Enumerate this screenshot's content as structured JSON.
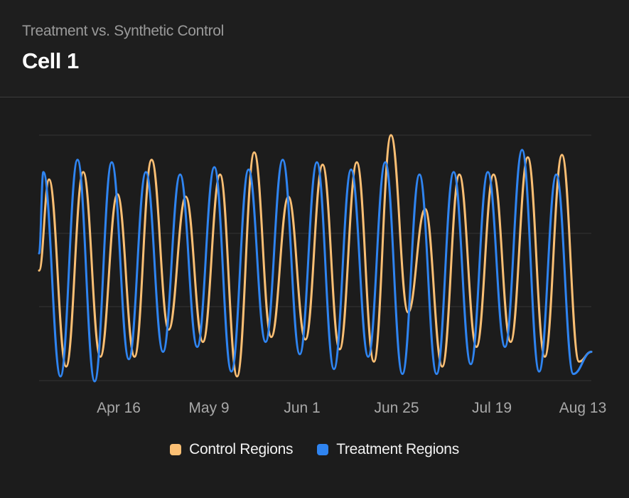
{
  "header": {
    "subtitle": "Treatment vs. Synthetic Control",
    "title": "Cell 1"
  },
  "colors": {
    "background": "#1c1c1c",
    "grid": "#333333",
    "control": "#fbbf74",
    "treatment": "#2f84f0"
  },
  "chart_data": {
    "type": "line",
    "title": "",
    "xlabel": "",
    "ylabel": "",
    "grid": true,
    "legend_position": "bottom-center",
    "x_start": "Mar 28",
    "x_end": "Aug 13",
    "x_ticks": [
      "Apr 16",
      "May 9",
      "Jun 1",
      "Jun 25",
      "Jul 19",
      "Aug 13"
    ],
    "y_gridlines": 4,
    "series": [
      {
        "name": "Control Regions",
        "color": "#fbbf74",
        "peaks": [
          0.82,
          0.85,
          0.76,
          0.9,
          0.75,
          0.84,
          0.93,
          0.75,
          0.88,
          0.89,
          1.0,
          0.7,
          0.84,
          0.84,
          0.91,
          0.92
        ],
        "troughs": [
          0.06,
          0.1,
          0.1,
          0.21,
          0.16,
          0.02,
          0.18,
          0.17,
          0.13,
          0.08,
          0.28,
          0.06,
          0.14,
          0.16,
          0.1,
          0.08
        ]
      },
      {
        "name": "Treatment Regions",
        "color": "#2f84f0",
        "peaks": [
          0.85,
          0.9,
          0.89,
          0.85,
          0.84,
          0.87,
          0.86,
          0.9,
          0.89,
          0.86,
          0.89,
          0.84,
          0.85,
          0.85,
          0.94,
          0.84
        ],
        "troughs": [
          0.02,
          0.0,
          0.09,
          0.12,
          0.14,
          0.04,
          0.16,
          0.11,
          0.05,
          0.1,
          0.03,
          0.03,
          0.07,
          0.14,
          0.04,
          0.03
        ]
      }
    ]
  },
  "legend": {
    "control_label": "Control Regions",
    "treatment_label": "Treatment Regions"
  }
}
